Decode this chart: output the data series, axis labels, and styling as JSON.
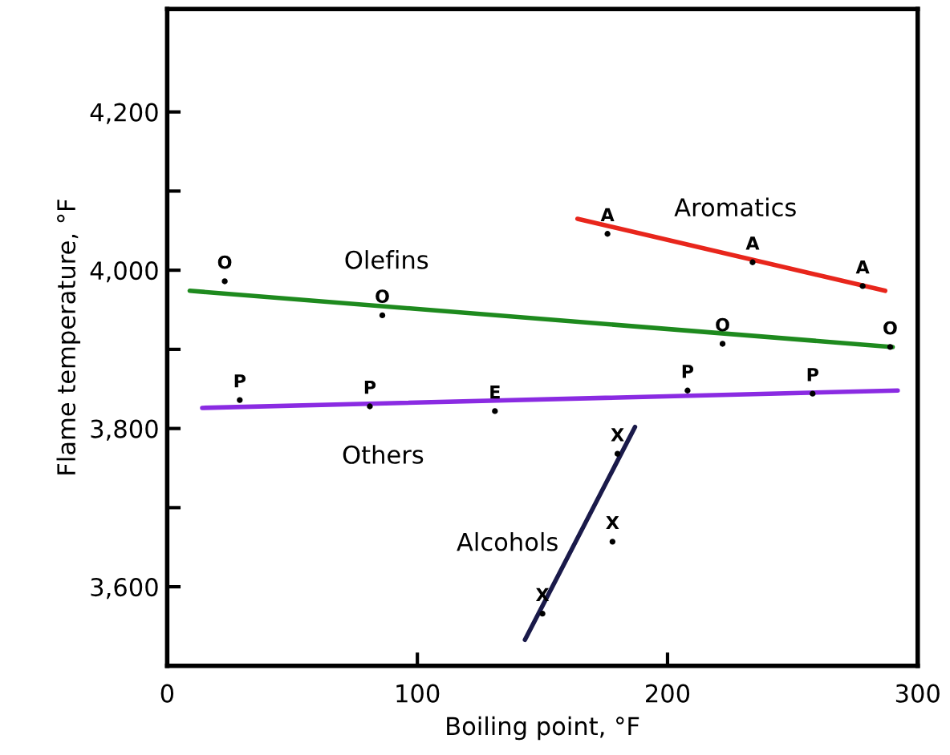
{
  "chart_data": {
    "type": "scatter",
    "xlabel": "Boiling point, °F",
    "ylabel": "Flame temperature, °F",
    "xlim": [
      0,
      300
    ],
    "ylim": [
      3500,
      4330
    ],
    "xticks": [
      0,
      100,
      200,
      300
    ],
    "yticks": [
      {
        "value": 3600,
        "label": "3,600"
      },
      {
        "value": 3700,
        "label": null
      },
      {
        "value": 3800,
        "label": "3,800"
      },
      {
        "value": 3900,
        "label": null
      },
      {
        "value": 4000,
        "label": "4,000"
      },
      {
        "value": 4100,
        "label": null
      },
      {
        "value": 4200,
        "label": "4,200"
      }
    ],
    "grid": false,
    "legend": false,
    "marker": "circle",
    "series": [
      {
        "type": "line",
        "marker": "none",
        "name": "Aromatics",
        "color": "#e8261c",
        "x": [
          164,
          287
        ],
        "values": [
          4065,
          3974
        ]
      },
      {
        "type": "line",
        "marker": "none",
        "name": "Olefins",
        "color": "#1e8a1e",
        "x": [
          9,
          290
        ],
        "values": [
          3974,
          3903
        ]
      },
      {
        "type": "line",
        "marker": "none",
        "name": "Others",
        "color": "#8a2be2",
        "x": [
          14,
          292
        ],
        "values": [
          3826,
          3848
        ]
      },
      {
        "type": "line",
        "marker": "none",
        "name": "Alcohols",
        "color": "#1a1a4a",
        "x": [
          143,
          187
        ],
        "values": [
          3533,
          3802
        ]
      },
      {
        "color": "#000000",
        "x": [
          176,
          234,
          278
        ],
        "values": [
          4046,
          4010,
          3980
        ],
        "value_labels": [
          "A",
          "A",
          "A"
        ]
      },
      {
        "color": "#000000",
        "x": [
          23,
          86,
          222,
          289
        ],
        "values": [
          3986,
          3943,
          3907,
          3903
        ],
        "value_labels": [
          "O",
          "O",
          "O",
          "O"
        ]
      },
      {
        "color": "#000000",
        "x": [
          29,
          81,
          131,
          208,
          258
        ],
        "values": [
          3836,
          3828,
          3822,
          3848,
          3844
        ],
        "value_labels": [
          "P",
          "P",
          "E",
          "P",
          "P"
        ]
      },
      {
        "color": "#000000",
        "x": [
          180,
          178,
          150
        ],
        "values": [
          3768,
          3657,
          3566
        ],
        "value_labels": [
          "X",
          "X",
          "X"
        ]
      }
    ]
  }
}
